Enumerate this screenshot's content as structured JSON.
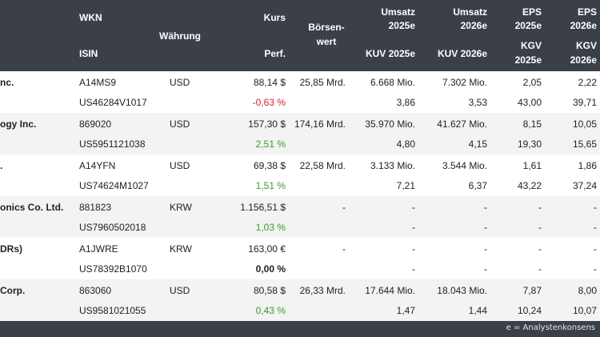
{
  "header": {
    "wkn": "WKN",
    "isin": "ISIN",
    "waehrung": "Währung",
    "kurs": "Kurs",
    "perf": "Perf.",
    "boersen_line1": "Börsen-",
    "boersen_line2": "wert",
    "umsatz2025_l1": "Umsatz",
    "umsatz2025_l2": "2025e",
    "umsatz2026_l1": "Umsatz",
    "umsatz2026_l2": "2026e",
    "kuv2025": "KUV 2025e",
    "kuv2026": "KUV 2026e",
    "eps2025_l1": "EPS",
    "eps2025_l2": "2025e",
    "eps2026_l1": "EPS",
    "eps2026_l2": "2026e",
    "kgv2025_l1": "KGV",
    "kgv2025_l2": "2025e",
    "kgv2026_l1": "KGV",
    "kgv2026_l2": "2026e"
  },
  "rows": [
    {
      "name": "nc.",
      "wkn": "A14MS9",
      "isin": "US46284V1017",
      "currency": "USD",
      "kurs": "88,14 $",
      "perf": "-0,63 %",
      "perf_class": "neg",
      "mcap": "25,85 Mrd.",
      "umsatz2025": "6.668 Mio.",
      "umsatz2026": "7.302 Mio.",
      "kuv2025": "3,86",
      "kuv2026": "3,53",
      "eps2025": "2,05",
      "eps2026": "2,22",
      "kgv2025": "43,00",
      "kgv2026": "39,71"
    },
    {
      "name": "ogy Inc.",
      "wkn": "869020",
      "isin": "US5951121038",
      "currency": "USD",
      "kurs": "157,30 $",
      "perf": "2,51 %",
      "perf_class": "pos",
      "mcap": "174,16 Mrd.",
      "umsatz2025": "35.970 Mio.",
      "umsatz2026": "41.627 Mio.",
      "kuv2025": "4,80",
      "kuv2026": "4,15",
      "eps2025": "8,15",
      "eps2026": "10,05",
      "kgv2025": "19,30",
      "kgv2026": "15,65"
    },
    {
      "name": ".",
      "wkn": "A14YFN",
      "isin": "US74624M1027",
      "currency": "USD",
      "kurs": "69,38 $",
      "perf": "1,51 %",
      "perf_class": "pos",
      "mcap": "22,58 Mrd.",
      "umsatz2025": "3.133 Mio.",
      "umsatz2026": "3.544 Mio.",
      "kuv2025": "7,21",
      "kuv2026": "6,37",
      "eps2025": "1,61",
      "eps2026": "1,86",
      "kgv2025": "43,22",
      "kgv2026": "37,24"
    },
    {
      "name": "onics Co. Ltd.",
      "wkn": "881823",
      "isin": "US7960502018",
      "currency": "KRW",
      "kurs": "1.156,51 $",
      "perf": "1,03 %",
      "perf_class": "pos",
      "mcap": "-",
      "umsatz2025": "-",
      "umsatz2026": "-",
      "kuv2025": "-",
      "kuv2026": "-",
      "eps2025": "-",
      "eps2026": "-",
      "kgv2025": "-",
      "kgv2026": "-"
    },
    {
      "name": "DRs)",
      "wkn": "A1JWRE",
      "isin": "US78392B1070",
      "currency": "KRW",
      "kurs": "163,00 €",
      "perf": "0,00 %",
      "perf_class": "zero",
      "mcap": "-",
      "umsatz2025": "-",
      "umsatz2026": "-",
      "kuv2025": "-",
      "kuv2026": "-",
      "eps2025": "-",
      "eps2026": "-",
      "kgv2025": "-",
      "kgv2026": "-"
    },
    {
      "name": "Corp.",
      "wkn": "863060",
      "isin": "US9581021055",
      "currency": "USD",
      "kurs": "80,58 $",
      "perf": "0,43 %",
      "perf_class": "pos",
      "mcap": "26,33 Mrd.",
      "umsatz2025": "17.644 Mio.",
      "umsatz2026": "18.043 Mio.",
      "kuv2025": "1,47",
      "kuv2026": "1,44",
      "eps2025": "7,87",
      "eps2026": "8,00",
      "kgv2025": "10,24",
      "kgv2026": "10,07"
    }
  ],
  "footer": {
    "note": "e = Analystenkonsens"
  }
}
